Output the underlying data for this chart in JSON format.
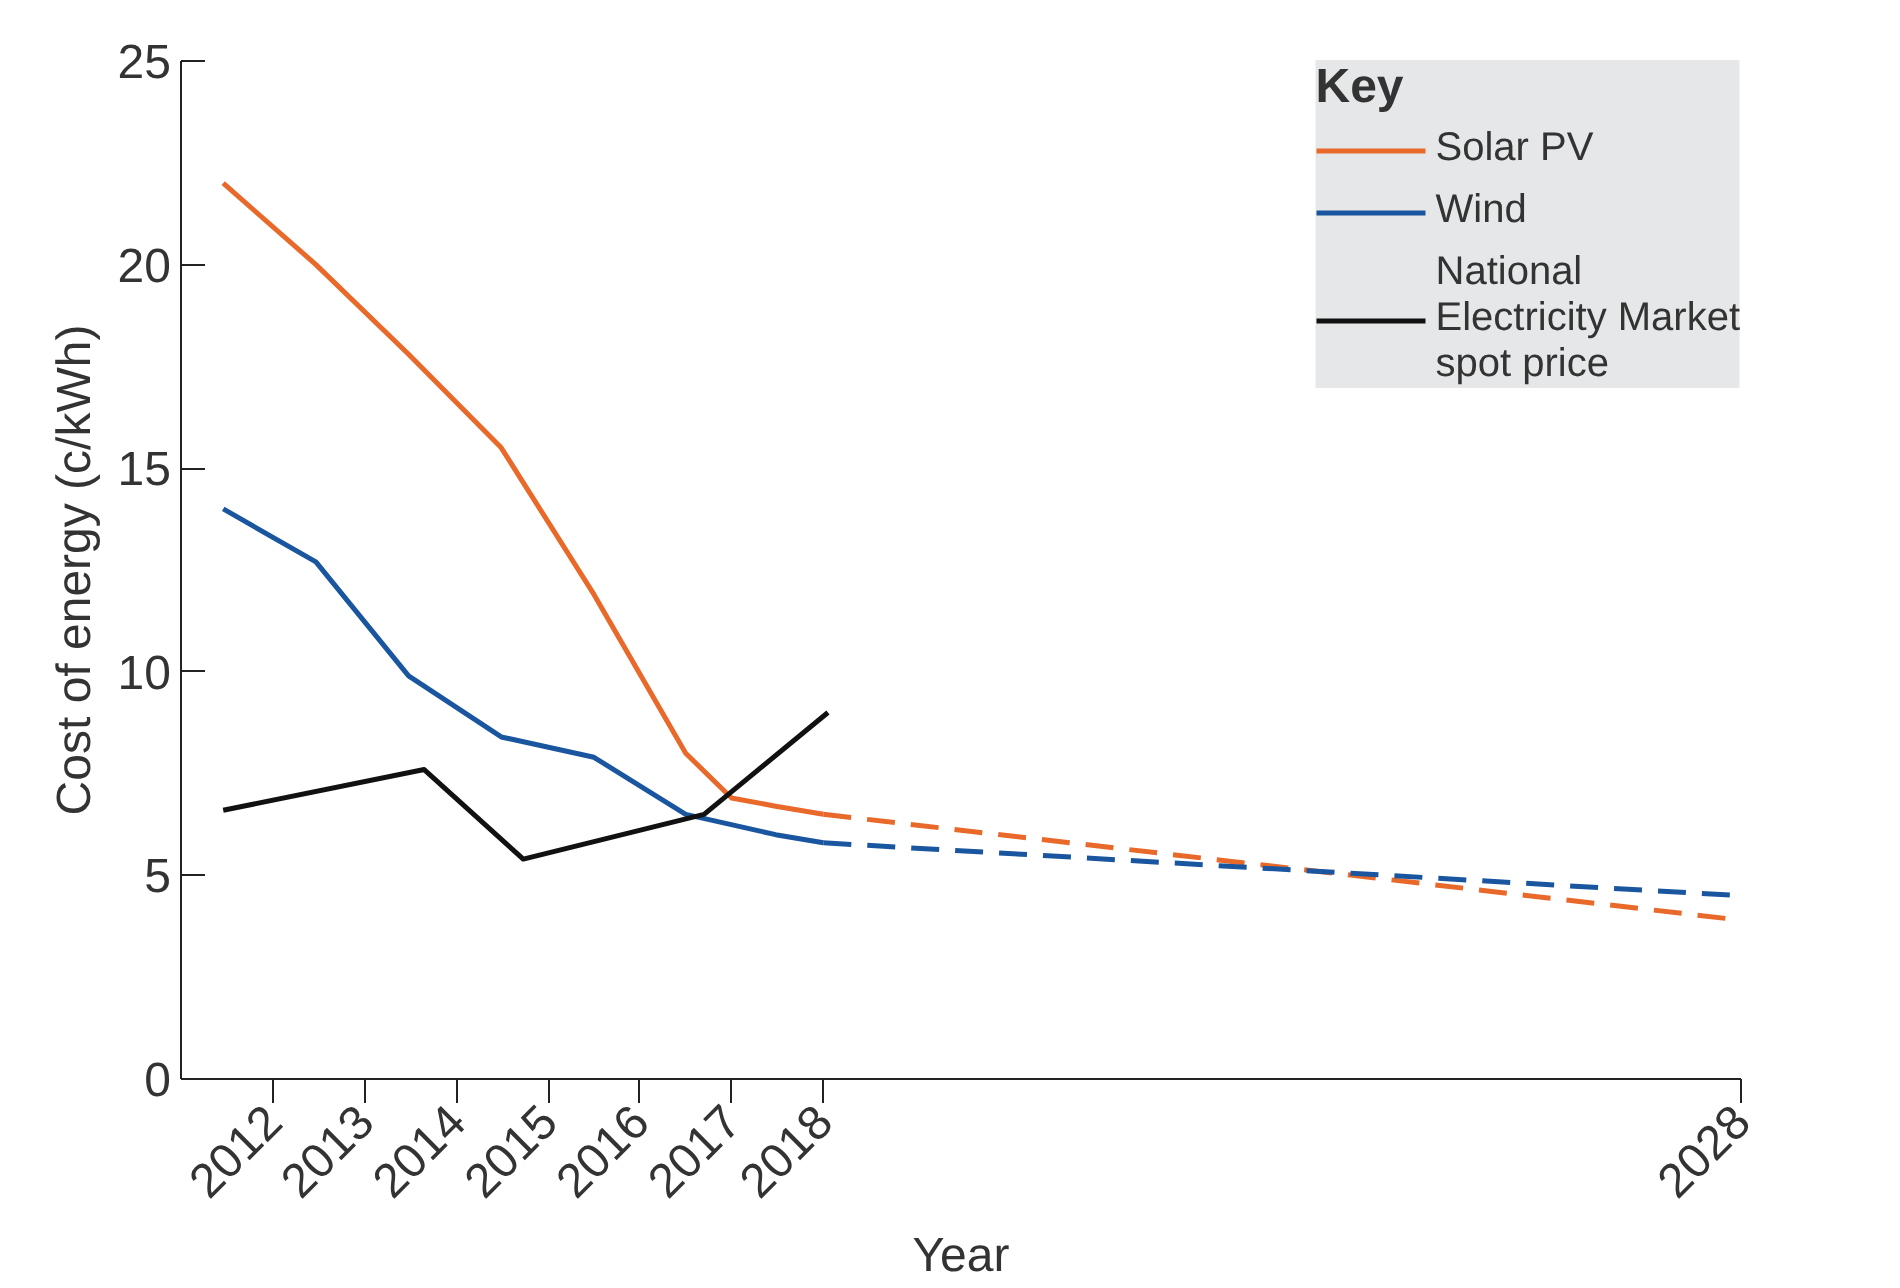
{
  "chart_data": {
    "type": "line",
    "xlabel": "Year",
    "ylabel": "Cost of energy (c/kWh)",
    "legend_title": "Key",
    "legend": "top right",
    "grid": false,
    "marker": "none",
    "xlim": [
      2011.0,
      2028.0
    ],
    "xticks": [
      2012,
      2013,
      2014,
      2015,
      2016,
      2017,
      2018,
      2028
    ],
    "ylim": [
      0,
      25
    ],
    "yticks": [
      0,
      5,
      10,
      15,
      20,
      25
    ],
    "series": [
      {
        "name": "Solar PV",
        "color": "#e8692a",
        "line_style": "solid",
        "x": [
          2011.46,
          2012.47,
          2013.48,
          2014.49,
          2015.5,
          2016.5,
          2017.0,
          2017.48,
          2018.0
        ],
        "values": [
          22.0,
          20.0,
          17.8,
          15.5,
          11.9,
          8.0,
          6.9,
          6.7,
          6.5
        ]
      },
      {
        "name": "Wind",
        "color": "#1a56a0",
        "line_style": "solid",
        "x": [
          2011.46,
          2012.47,
          2013.48,
          2014.49,
          2015.5,
          2016.5,
          2017.48,
          2018.0
        ],
        "values": [
          14.0,
          12.7,
          9.9,
          8.4,
          7.9,
          6.5,
          6.0,
          5.8
        ]
      },
      {
        "name": "National\nElectricity Market\nspot price",
        "color": "#111111",
        "line_style": "solid",
        "x": [
          2011.46,
          2013.65,
          2014.73,
          2016.7,
          2018.05
        ],
        "values": [
          6.6,
          7.6,
          5.4,
          6.5,
          9.0
        ]
      },
      {
        "color": "#e8692a",
        "line_style": "dashed",
        "x": [
          2018.0,
          2028.0
        ],
        "values": [
          6.5,
          3.9
        ]
      },
      {
        "color": "#1a56a0",
        "line_style": "dashed",
        "x": [
          2018.0,
          2028.0
        ],
        "values": [
          5.8,
          4.5
        ]
      }
    ]
  }
}
